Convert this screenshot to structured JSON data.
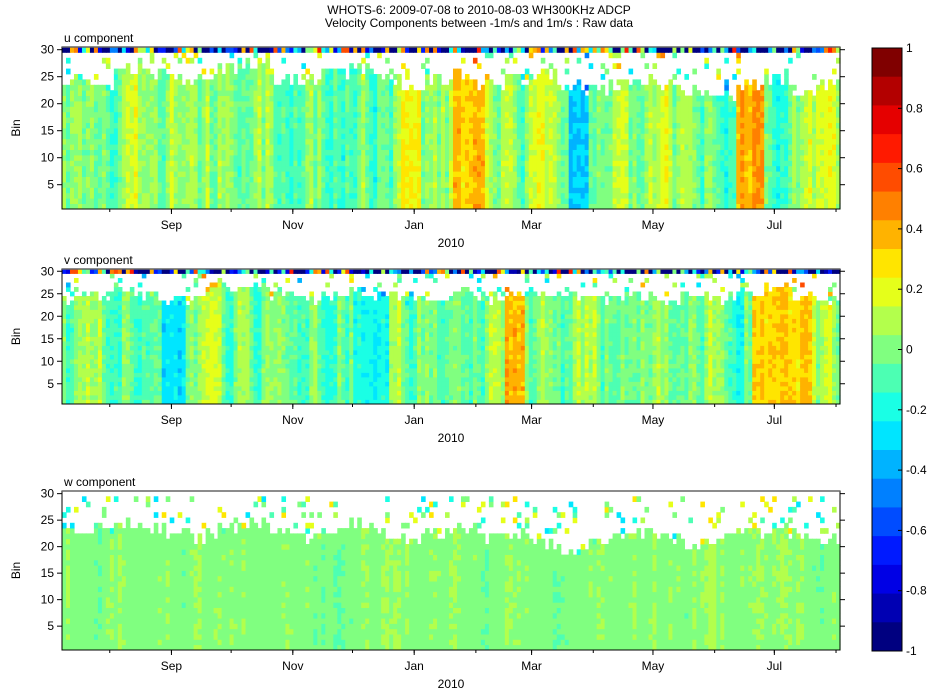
{
  "figure": {
    "title": "WHOTS-6:  2009-07-08 to 2010-08-03 WH300KHz ADCP",
    "subtitle": "Velocity Components between -1m/s and 1m/s : Raw data"
  },
  "chart_data": [
    {
      "type": "heatmap",
      "name": "u",
      "title": "u component",
      "ylabel": "Bin",
      "xlabel": "2010",
      "ylim": [
        1,
        30
      ],
      "y_ticks": [
        5,
        10,
        15,
        20,
        25,
        30
      ],
      "x_ticks": [
        "Sep",
        "Nov",
        "Jan",
        "Mar",
        "May",
        "Jul"
      ],
      "x_tick_dates": [
        "2009-09-01",
        "2009-11-01",
        "2010-01-01",
        "2010-03-01",
        "2010-05-01",
        "2010-07-01"
      ],
      "xlim": [
        "2009-07-08",
        "2010-08-03"
      ],
      "colormap": "jet",
      "clim": [
        -1,
        1
      ],
      "valid_bin_top_profile": [
        24,
        23,
        26,
        25,
        24,
        25,
        26,
        27,
        24,
        23,
        25,
        26,
        24,
        22,
        24,
        25,
        23,
        24,
        25,
        23,
        22,
        23,
        24,
        23,
        22,
        21,
        23,
        24,
        22,
        23
      ],
      "hotspots": [
        {
          "x": [
            "2010-01-20",
            "2010-02-05"
          ],
          "value": 0.4
        },
        {
          "x": [
            "2010-06-12",
            "2010-06-25"
          ],
          "value": 0.5
        },
        {
          "x": [
            "2009-12-25",
            "2010-01-05"
          ],
          "value": 0.3
        },
        {
          "x": [
            "2010-03-20",
            "2010-03-30"
          ],
          "value": -0.4
        }
      ]
    },
    {
      "type": "heatmap",
      "name": "v",
      "title": "v component",
      "ylabel": "Bin",
      "xlabel": "2010",
      "ylim": [
        1,
        30
      ],
      "y_ticks": [
        5,
        10,
        15,
        20,
        25,
        30
      ],
      "x_ticks": [
        "Sep",
        "Nov",
        "Jan",
        "Mar",
        "May",
        "Jul"
      ],
      "x_tick_dates": [
        "2009-09-01",
        "2009-11-01",
        "2010-01-01",
        "2010-03-01",
        "2010-05-01",
        "2010-07-01"
      ],
      "xlim": [
        "2009-07-08",
        "2010-08-03"
      ],
      "colormap": "jet",
      "clim": [
        -1,
        1
      ],
      "valid_bin_top_profile": [
        23,
        24,
        25,
        24,
        23,
        25,
        26,
        26,
        24,
        23,
        24,
        25,
        24,
        23,
        24,
        25,
        23,
        24,
        25,
        24,
        23,
        24,
        24,
        23,
        24,
        23,
        25,
        26,
        24,
        23
      ],
      "hotspots": [
        {
          "x": [
            "2010-02-15",
            "2010-02-25"
          ],
          "value": 0.45
        },
        {
          "x": [
            "2010-06-20",
            "2010-07-20"
          ],
          "value": 0.4
        },
        {
          "x": [
            "2009-08-28",
            "2009-09-08"
          ],
          "value": -0.35
        },
        {
          "x": [
            "2009-12-01",
            "2009-12-20"
          ],
          "value": -0.25
        }
      ]
    },
    {
      "type": "heatmap",
      "name": "w",
      "title": "w component",
      "ylabel": "Bin",
      "xlabel": "2010",
      "ylim": [
        1,
        30
      ],
      "y_ticks": [
        5,
        10,
        15,
        20,
        25,
        30
      ],
      "x_ticks": [
        "Sep",
        "Nov",
        "Jan",
        "Mar",
        "May",
        "Jul"
      ],
      "x_tick_dates": [
        "2009-09-01",
        "2009-11-01",
        "2010-01-01",
        "2010-03-01",
        "2010-05-01",
        "2010-07-01"
      ],
      "xlim": [
        "2009-07-08",
        "2010-08-03"
      ],
      "colormap": "jet",
      "clim": [
        -1,
        1
      ],
      "valid_bin_top_profile": [
        22,
        23,
        24,
        23,
        22,
        21,
        23,
        24,
        22,
        21,
        23,
        24,
        22,
        21,
        22,
        23,
        21,
        22,
        20,
        19,
        20,
        21,
        22,
        21,
        20,
        21,
        22,
        23,
        22,
        21
      ],
      "hotspots": []
    }
  ],
  "colorbar": {
    "min": -1,
    "max": 1,
    "ticks": [
      1,
      0.8,
      0.6,
      0.4,
      0.2,
      0,
      -0.2,
      -0.4,
      -0.6,
      -0.8,
      -1
    ],
    "tick_labels": [
      "1",
      "0.8",
      "0.6",
      "0.4",
      "0.2",
      "0",
      "-0.2",
      "-0.4",
      "-0.6",
      "-0.8",
      "-1"
    ],
    "levels": 21
  }
}
